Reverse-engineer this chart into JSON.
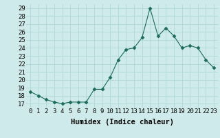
{
  "x": [
    0,
    1,
    2,
    3,
    4,
    5,
    6,
    7,
    8,
    9,
    10,
    11,
    12,
    13,
    14,
    15,
    16,
    17,
    18,
    19,
    20,
    21,
    22,
    23
  ],
  "y": [
    18.5,
    18.0,
    17.5,
    17.2,
    17.0,
    17.2,
    17.2,
    17.2,
    18.8,
    18.8,
    20.3,
    22.5,
    23.8,
    24.0,
    25.3,
    29.0,
    25.5,
    26.5,
    25.5,
    24.0,
    24.3,
    24.0,
    22.5,
    21.5
  ],
  "line_color": "#1a6b5a",
  "marker": "D",
  "marker_size": 2.5,
  "bg_color": "#ceeaea",
  "grid_color": "#b0d8d8",
  "xlabel": "Humidex (Indice chaleur)",
  "ylabel_ticks": [
    17,
    18,
    19,
    20,
    21,
    22,
    23,
    24,
    25,
    26,
    27,
    28,
    29
  ],
  "ylim": [
    16.5,
    29.5
  ],
  "xlim": [
    -0.5,
    23.5
  ],
  "xlabel_fontsize": 7.5,
  "tick_fontsize": 6.5
}
